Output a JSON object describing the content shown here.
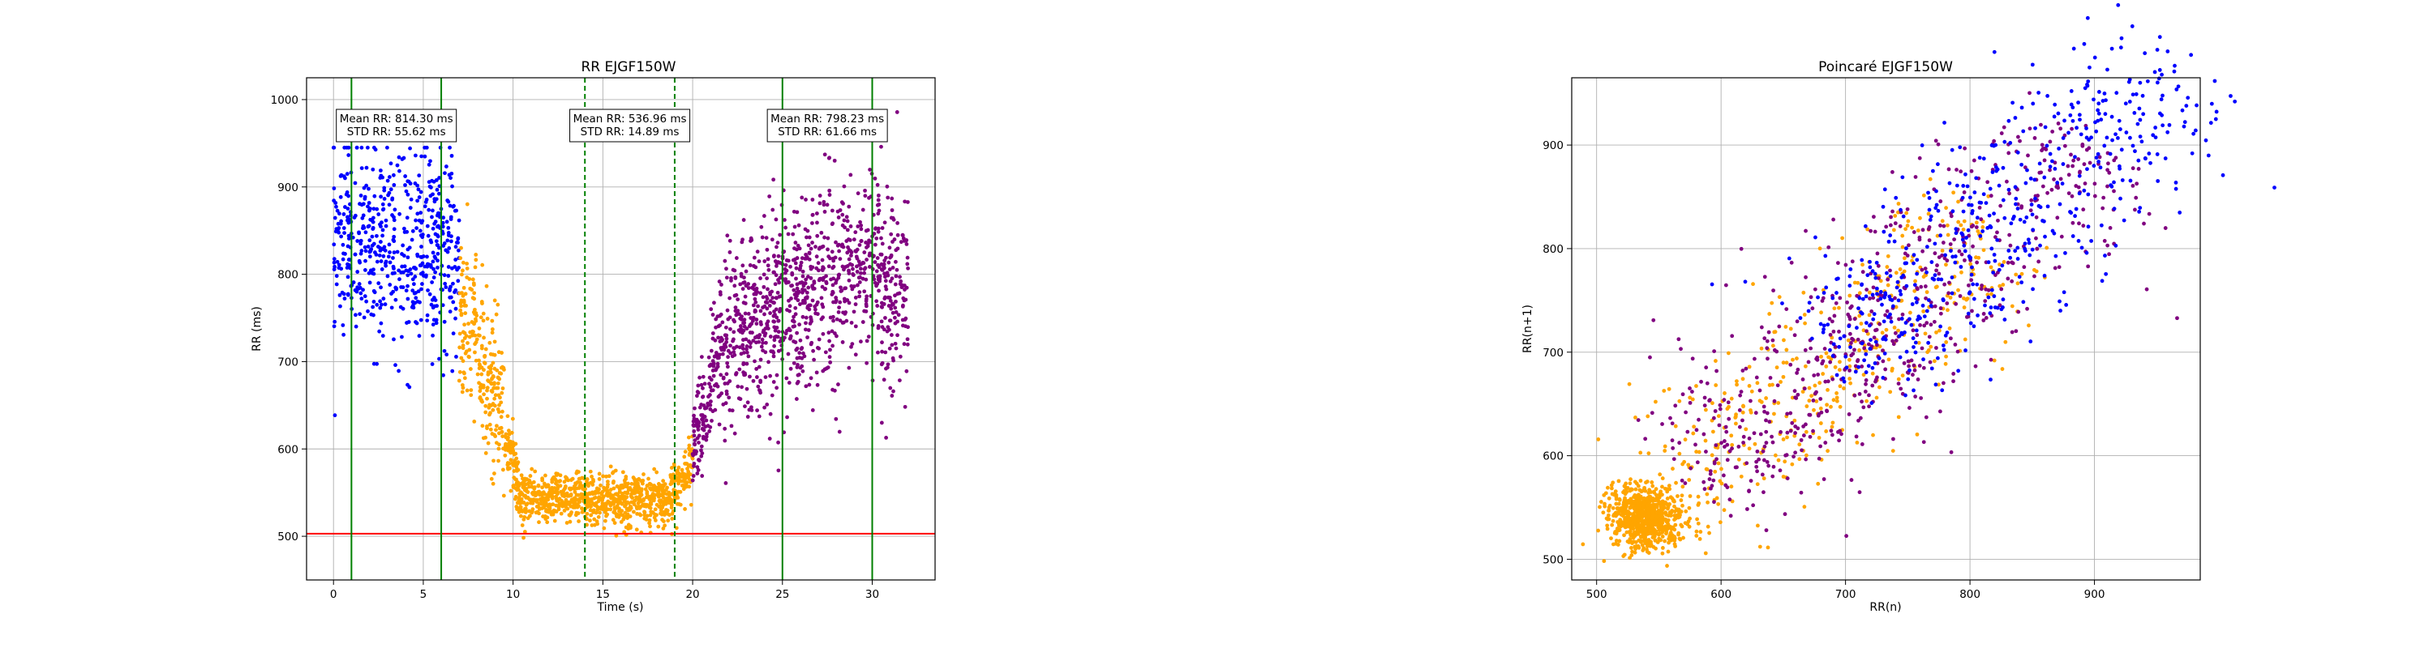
{
  "chart_data": [
    {
      "type": "scatter",
      "title": "RR EJGF150W",
      "xlabel": "Time (s)",
      "ylabel": "RR (ms)",
      "xlim": [
        -1.5,
        33.5
      ],
      "ylim": [
        450,
        1025
      ],
      "xticks": [
        0,
        5,
        10,
        15,
        20,
        25,
        30
      ],
      "yticks": [
        500,
        600,
        700,
        800,
        900,
        1000
      ],
      "grid": true,
      "series": [
        {
          "color": "#0000ff",
          "x_range": [
            0,
            7
          ],
          "mean": 830,
          "spread": 55,
          "min": 625,
          "max": 945
        },
        {
          "color": "#ffa500",
          "segments": [
            {
              "x_range": [
                7,
                9.5
              ],
              "start": 760,
              "end": 640,
              "spread": 45
            },
            {
              "x_range": [
                9.5,
                10.3
              ],
              "start": 620,
              "end": 560,
              "spread": 20
            },
            {
              "x_range": [
                10.3,
                18.8
              ],
              "start": 545,
              "end": 540,
              "spread": 14
            },
            {
              "x_range": [
                18.8,
                20
              ],
              "start": 545,
              "end": 580,
              "spread": 18
            }
          ]
        },
        {
          "color": "#800080",
          "segments": [
            {
              "x_range": [
                20,
                21
              ],
              "start": 600,
              "end": 660,
              "spread": 30
            },
            {
              "x_range": [
                21,
                23
              ],
              "start": 690,
              "end": 740,
              "spread": 50
            },
            {
              "x_range": [
                23,
                30.5
              ],
              "start": 740,
              "end": 830,
              "spread": 55
            },
            {
              "x_range": [
                30.5,
                32
              ],
              "start": 760,
              "end": 780,
              "spread": 60
            }
          ]
        }
      ],
      "hline": {
        "y": 503,
        "color": "#ff0000"
      },
      "vlines_solid": [
        1,
        6,
        25,
        30
      ],
      "vlines_dashed": [
        14,
        19
      ],
      "vline_color": "#008000",
      "annotations": [
        {
          "x": 3.5,
          "lines": [
            "Mean RR: 814.30 ms",
            "STD RR: 55.62 ms"
          ]
        },
        {
          "x": 16.5,
          "lines": [
            "Mean RR: 536.96 ms",
            "STD RR: 14.89 ms"
          ]
        },
        {
          "x": 27.5,
          "lines": [
            "Mean RR: 798.23 ms",
            "STD RR: 61.66 ms"
          ]
        }
      ]
    },
    {
      "type": "scatter",
      "title": "Poincaré EJGF150W",
      "xlabel": "RR(n)",
      "ylabel": "RR(n+1)",
      "xlim": [
        480,
        985
      ],
      "ylim": [
        480,
        965
      ],
      "xticks": [
        500,
        600,
        700,
        800,
        900
      ],
      "yticks": [
        500,
        600,
        700,
        800,
        900
      ],
      "grid": true,
      "series": [
        {
          "color": "#ffa500",
          "clusters": [
            {
              "center": [
                540,
                540
              ],
              "spread": 15,
              "share": 0.6
            },
            {
              "center": [
                650,
                650
              ],
              "range": [
                560,
                820
              ],
              "diag_spread": 35,
              "share": 0.4
            }
          ]
        },
        {
          "color": "#800080",
          "range": [
            580,
            900
          ],
          "diag_spread": 40
        },
        {
          "color": "#0000ff",
          "range": [
            690,
            970
          ],
          "diag_spread": 40
        }
      ]
    }
  ]
}
